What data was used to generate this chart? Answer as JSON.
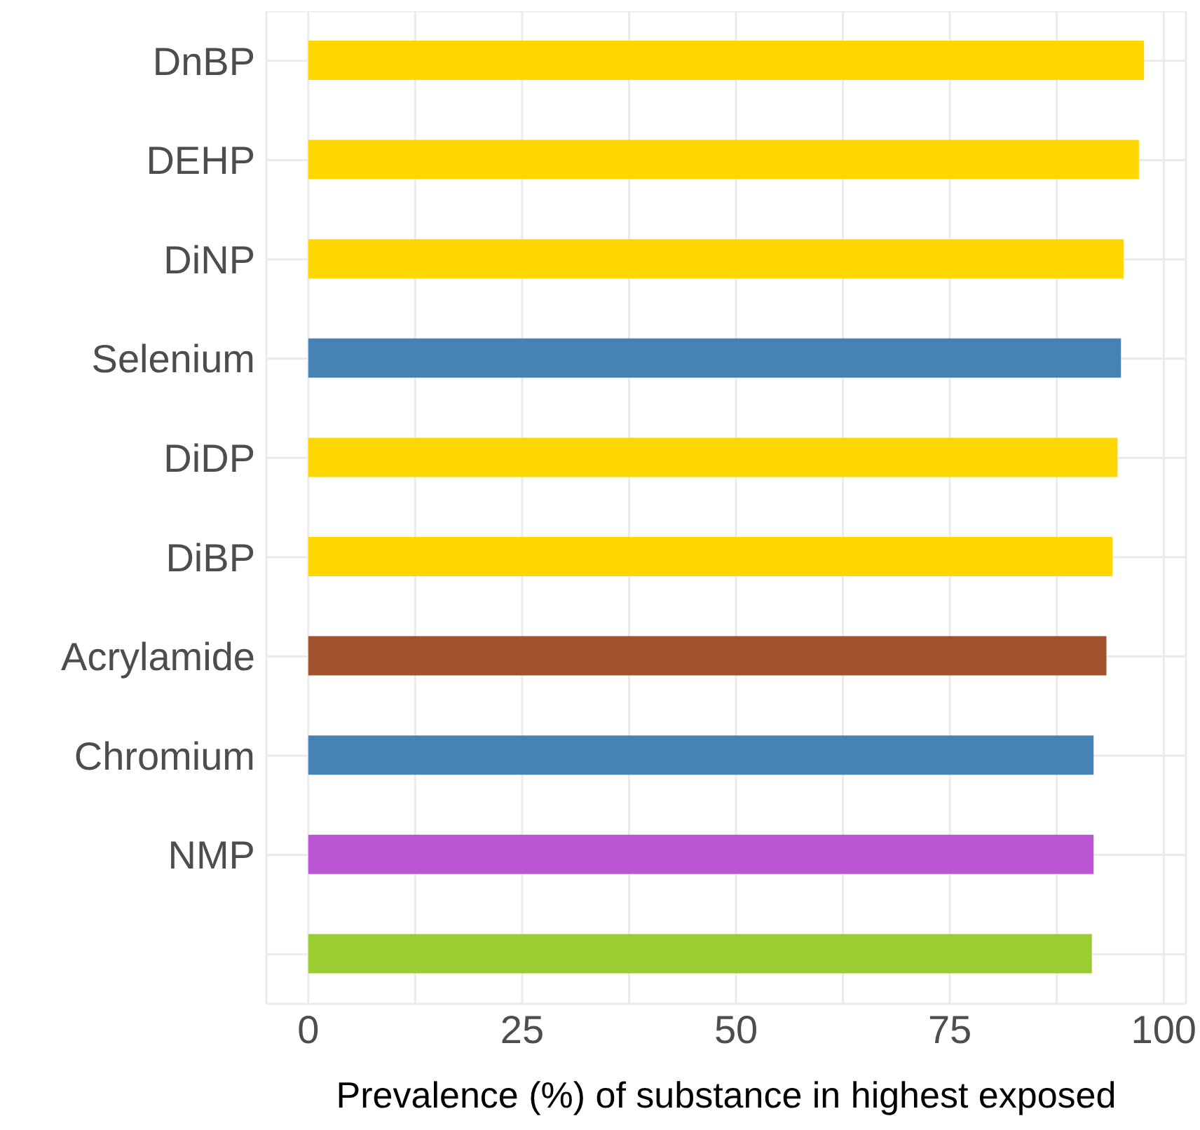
{
  "chart_data": {
    "type": "bar",
    "orientation": "horizontal",
    "xlabel": "Prevalence (%) of substance in highest exposed",
    "categories": [
      "DnBP",
      "DEHP",
      "DiNP",
      "Selenium",
      "DiDP",
      "DiBP",
      "Acrylamide",
      "Chromium",
      "NMP",
      null
    ],
    "values": [
      97.7,
      97.1,
      95.3,
      95.0,
      94.6,
      94.0,
      93.3,
      91.8,
      91.8,
      91.6
    ],
    "colors": [
      "#ffd700",
      "#ffd700",
      "#ffd700",
      "#4682b4",
      "#ffd700",
      "#ffd700",
      "#a0522d",
      "#4682b4",
      "#ba55d3",
      "#9acd32"
    ],
    "xlim": [
      -4.9,
      102.6
    ],
    "xticks": [
      0,
      {
        "value": 12.5,
        "label": null
      },
      25,
      {
        "value": 37.5,
        "label": null
      },
      50,
      {
        "value": 62.5,
        "label": null
      },
      75,
      {
        "value": 87.5,
        "label": null
      },
      100
    ],
    "grid": true
  }
}
